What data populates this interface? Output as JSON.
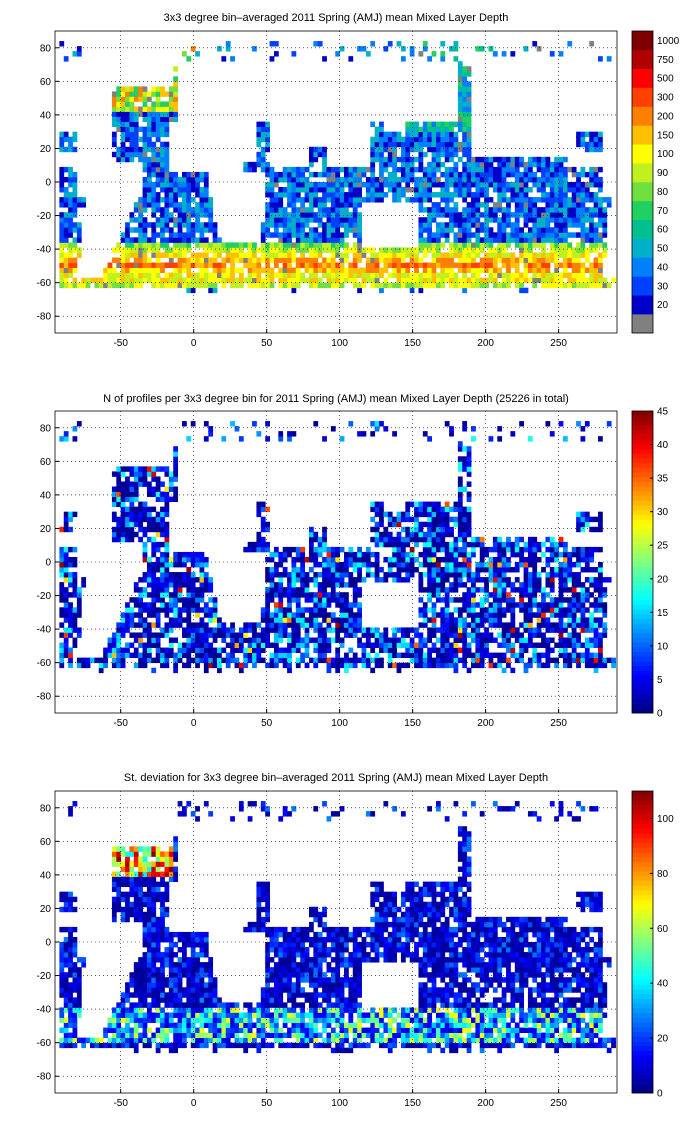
{
  "chart_data": [
    {
      "type": "heatmap",
      "title": "3x3 degree bin–averaged 2011 Spring (AMJ) mean Mixed Layer Depth",
      "xlabel": "",
      "ylabel": "",
      "xlim": [
        -95,
        290
      ],
      "ylim": [
        -90,
        90
      ],
      "x_ticks": [
        -50,
        0,
        50,
        100,
        150,
        200,
        250
      ],
      "y_ticks": [
        80,
        60,
        40,
        20,
        0,
        -20,
        -40,
        -60,
        -80
      ],
      "colorbar": {
        "kind": "categorical",
        "labels": [
          "20",
          "30",
          "40",
          "50",
          "60",
          "70",
          "80",
          "90",
          "100",
          "150",
          "200",
          "300",
          "500",
          "750",
          "1000"
        ],
        "colors": [
          "#808080",
          "#0000c8",
          "#0040ff",
          "#0080ff",
          "#00b0c8",
          "#00c090",
          "#20d060",
          "#70e040",
          "#c0f020",
          "#ffff00",
          "#ffc000",
          "#ff8000",
          "#ff4000",
          "#ff0000",
          "#b00000",
          "#800000"
        ]
      },
      "grid": true,
      "seed": 11,
      "stats_note": ""
    },
    {
      "type": "heatmap",
      "title": "N of profiles per 3x3 degree bin for 2011 Spring (AMJ) mean Mixed Layer Depth  (25226 in total)",
      "xlabel": "",
      "ylabel": "",
      "xlim": [
        -95,
        290
      ],
      "ylim": [
        -90,
        90
      ],
      "x_ticks": [
        -50,
        0,
        50,
        100,
        150,
        200,
        250
      ],
      "y_ticks": [
        80,
        60,
        40,
        20,
        0,
        -20,
        -40,
        -60,
        -80
      ],
      "colorbar": {
        "kind": "continuous",
        "min": 0,
        "max": 45,
        "ticks": [
          0,
          5,
          10,
          15,
          20,
          25,
          30,
          35,
          40,
          45
        ]
      },
      "grid": true,
      "seed": 23
    },
    {
      "type": "heatmap",
      "title": "St. deviation for 3x3 degree bin–averaged 2011 Spring (AMJ) mean Mixed Layer Depth",
      "xlabel": "",
      "ylabel": "",
      "xlim": [
        -95,
        290
      ],
      "ylim": [
        -90,
        90
      ],
      "x_ticks": [
        -50,
        0,
        50,
        100,
        150,
        200,
        250
      ],
      "y_ticks": [
        80,
        60,
        40,
        20,
        0,
        -20,
        -40,
        -60,
        -80
      ],
      "colorbar": {
        "kind": "continuous",
        "min": 0,
        "max": 110,
        "ticks": [
          0,
          20,
          40,
          60,
          80,
          100
        ]
      },
      "grid": true,
      "seed": 37
    }
  ]
}
